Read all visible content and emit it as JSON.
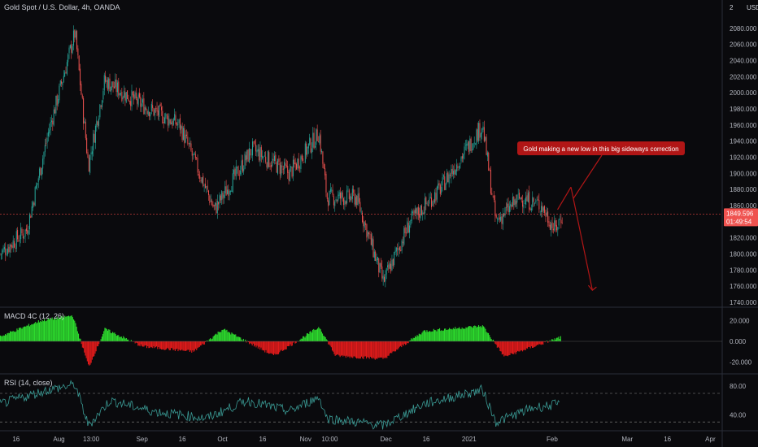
{
  "header": {
    "title": "Gold Spot / U.S. Dollar, 4h, OANDA",
    "currency": "USD",
    "scale_mark": "2"
  },
  "colors": {
    "background": "#0a0a0d",
    "up": "#26a69a",
    "down": "#ef5350",
    "macd_up": "#2ddc2d",
    "macd_down": "#e31b1b",
    "rsi": "#3a9a94",
    "annotation": "#b11616",
    "price_line": "#e04040"
  },
  "annotation": {
    "text": "Gold making a new low in this big sideways correction"
  },
  "price_tag": {
    "value": "1849.596",
    "countdown": "01:49:54"
  },
  "chart_data": [
    {
      "type": "candlestick",
      "title": "Gold Spot / U.S. Dollar, 4h, OANDA",
      "ylim": [
        1740,
        2095
      ],
      "y_ticks": [
        "2080.000",
        "2060.000",
        "2040.000",
        "2020.000",
        "2000.000",
        "1980.000",
        "1960.000",
        "1940.000",
        "1920.000",
        "1900.000",
        "1880.000",
        "1860.000",
        "1820.000",
        "1800.000",
        "1780.000",
        "1760.000",
        "1740.000"
      ],
      "x_ticks": [
        "16",
        "Aug",
        "13:00",
        "Sep",
        "16",
        "Oct",
        "16",
        "Nov",
        "10:00",
        "Dec",
        "16",
        "2021",
        "Feb",
        "Mar",
        "16",
        "Apr"
      ],
      "key_points": {
        "x": [
          "2020-07-10",
          "2020-07-20",
          "2020-07-28",
          "2020-08-07",
          "2020-08-12",
          "2020-08-18",
          "2020-09-01",
          "2020-09-15",
          "2020-09-28",
          "2020-10-12",
          "2020-10-26",
          "2020-11-06",
          "2020-11-09",
          "2020-11-20",
          "2020-11-30",
          "2020-12-10",
          "2020-12-21",
          "2021-01-06",
          "2021-01-11",
          "2021-01-20",
          "2021-01-28",
          "2021-02-02",
          "2021-02-05"
        ],
        "close": [
          1800,
          1830,
          1950,
          2075,
          1910,
          2015,
          1985,
          1960,
          1855,
          1930,
          1900,
          1950,
          1870,
          1870,
          1765,
          1840,
          1880,
          1960,
          1840,
          1870,
          1860,
          1830,
          1850
        ]
      },
      "current_price": 1849.596,
      "projection": [
        [
          "2021-02-08",
          1883
        ],
        [
          "2021-02-16",
          1755
        ]
      ]
    },
    {
      "type": "histogram",
      "title": "MACD 4C (12, 26)",
      "ylim": [
        -30,
        30
      ],
      "y_ticks": [
        "20.000",
        "0.000",
        "-20.000"
      ],
      "key_points": {
        "x": [
          "2020-07-10",
          "2020-07-25",
          "2020-08-06",
          "2020-08-12",
          "2020-08-18",
          "2020-09-01",
          "2020-09-20",
          "2020-10-01",
          "2020-10-20",
          "2020-11-06",
          "2020-11-12",
          "2020-11-30",
          "2020-12-15",
          "2021-01-06",
          "2021-01-14",
          "2021-02-04"
        ],
        "values": [
          5,
          20,
          25,
          -25,
          12,
          -5,
          -10,
          12,
          -14,
          14,
          -14,
          -17,
          10,
          15,
          -15,
          4
        ]
      }
    },
    {
      "type": "line",
      "title": "RSI (14, close)",
      "ylim": [
        20,
        95
      ],
      "y_ticks": [
        "80.00",
        "40.00"
      ],
      "bands": [
        70,
        30
      ],
      "key_points": {
        "x": [
          "2020-07-10",
          "2020-07-28",
          "2020-08-07",
          "2020-08-12",
          "2020-08-20",
          "2020-09-05",
          "2020-09-25",
          "2020-10-10",
          "2020-10-26",
          "2020-11-06",
          "2020-11-09",
          "2020-11-30",
          "2020-12-15",
          "2021-01-06",
          "2021-01-11",
          "2021-01-25",
          "2021-02-04"
        ],
        "values": [
          55,
          75,
          82,
          25,
          60,
          45,
          35,
          60,
          45,
          65,
          35,
          25,
          55,
          75,
          30,
          50,
          55
        ]
      }
    }
  ]
}
